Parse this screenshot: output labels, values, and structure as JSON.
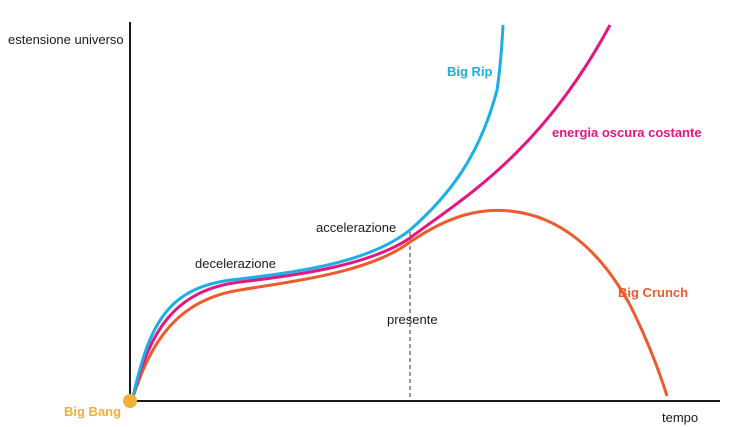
{
  "axes": {
    "y_label": "estensione universo",
    "x_label": "tempo"
  },
  "origin_label": "Big Bang",
  "phase_labels": {
    "deceleration": "decelerazione",
    "acceleration": "accelerazione",
    "present": "presente"
  },
  "scenarios": [
    {
      "label": "Big Rip",
      "color": "#1aafe6"
    },
    {
      "label": "energia oscura costante",
      "color": "#e6157f"
    },
    {
      "label": "Big Crunch",
      "color": "#ec5c2e"
    }
  ],
  "colors": {
    "axis": "#1a1a1a",
    "origin_dot": "#f2b135",
    "origin_label": "#f2b135"
  }
}
